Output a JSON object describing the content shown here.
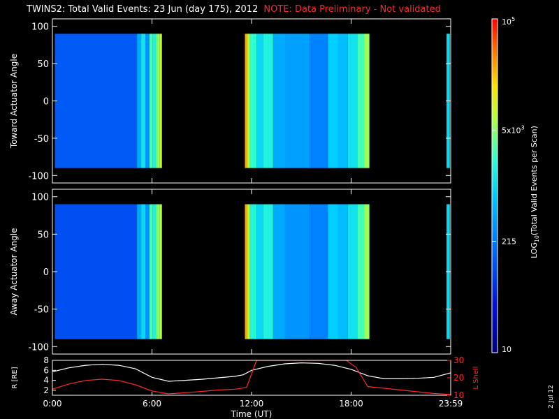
{
  "header": {
    "title": "TWINS2: Total Valid Events: 23 Jun (day 175), 2012",
    "note": "NOTE: Data Preliminary - Not validated"
  },
  "date_stamp": "2 Jul 12",
  "colors": {
    "background": "#000000",
    "axis": "#ffffff",
    "note": "#ff2a2a",
    "lshell": "#ff2a2a",
    "radius": "#ffffff"
  },
  "colorbar": {
    "label": "LOG10(Total Valid Events per Scan)",
    "scale": "log",
    "ticks": [
      "10",
      "215",
      "5x10^3",
      "10^5"
    ]
  },
  "x_axis": {
    "label": "Time (UT)",
    "ticks": [
      "0:00",
      "6:00",
      "12:00",
      "18:00",
      "23:59"
    ],
    "range_hours": [
      0,
      24
    ]
  },
  "chart_data": [
    {
      "type": "heatmap",
      "ylabel": "Toward Actuator Angle",
      "ylim": [
        -110,
        110
      ],
      "yticks": [
        100,
        50,
        0,
        -50,
        -100
      ],
      "angle_range": [
        -90,
        90
      ],
      "data_segments_hours": [
        [
          0.15,
          6.6
        ],
        [
          11.6,
          19.1
        ],
        [
          23.75,
          23.95
        ]
      ],
      "columns": [
        {
          "t0": 0.15,
          "t1": 5.1,
          "level": 0.28
        },
        {
          "t0": 5.1,
          "t1": 5.35,
          "level": 0.42
        },
        {
          "t0": 5.35,
          "t1": 5.6,
          "level": 0.52
        },
        {
          "t0": 5.6,
          "t1": 5.85,
          "level": 0.38
        },
        {
          "t0": 5.85,
          "t1": 6.05,
          "level": 0.6
        },
        {
          "t0": 6.05,
          "t1": 6.25,
          "level": 0.55
        },
        {
          "t0": 6.25,
          "t1": 6.45,
          "level": 0.66
        },
        {
          "t0": 6.45,
          "t1": 6.6,
          "level": 0.72
        },
        {
          "t0": 11.6,
          "t1": 11.75,
          "level": 0.85
        },
        {
          "t0": 11.75,
          "t1": 11.9,
          "level": 0.72
        },
        {
          "t0": 11.9,
          "t1": 12.3,
          "level": 0.58
        },
        {
          "t0": 12.3,
          "t1": 12.7,
          "level": 0.5
        },
        {
          "t0": 12.7,
          "t1": 13.3,
          "level": 0.55
        },
        {
          "t0": 13.3,
          "t1": 14.0,
          "level": 0.42
        },
        {
          "t0": 14.0,
          "t1": 15.5,
          "level": 0.4
        },
        {
          "t0": 15.5,
          "t1": 16.6,
          "level": 0.35
        },
        {
          "t0": 16.6,
          "t1": 17.2,
          "level": 0.48
        },
        {
          "t0": 17.2,
          "t1": 17.8,
          "level": 0.45
        },
        {
          "t0": 17.8,
          "t1": 18.4,
          "level": 0.52
        },
        {
          "t0": 18.4,
          "t1": 18.8,
          "level": 0.6
        },
        {
          "t0": 18.8,
          "t1": 19.1,
          "level": 0.68
        },
        {
          "t0": 23.75,
          "t1": 23.95,
          "level": 0.5
        }
      ]
    },
    {
      "type": "heatmap",
      "ylabel": "Away Actuator Angle",
      "ylim": [
        -110,
        110
      ],
      "yticks": [
        100,
        50,
        0,
        -50,
        -100
      ],
      "angle_range": [
        -90,
        90
      ],
      "data_segments_hours": [
        [
          0.15,
          6.6
        ],
        [
          11.6,
          19.1
        ],
        [
          23.75,
          23.95
        ]
      ],
      "columns": [
        {
          "t0": 0.15,
          "t1": 5.1,
          "level": 0.26
        },
        {
          "t0": 5.1,
          "t1": 5.35,
          "level": 0.42
        },
        {
          "t0": 5.35,
          "t1": 5.6,
          "level": 0.5
        },
        {
          "t0": 5.6,
          "t1": 5.85,
          "level": 0.38
        },
        {
          "t0": 5.85,
          "t1": 6.05,
          "level": 0.6
        },
        {
          "t0": 6.05,
          "t1": 6.25,
          "level": 0.55
        },
        {
          "t0": 6.25,
          "t1": 6.45,
          "level": 0.66
        },
        {
          "t0": 6.45,
          "t1": 6.6,
          "level": 0.7
        },
        {
          "t0": 11.6,
          "t1": 11.75,
          "level": 0.85
        },
        {
          "t0": 11.75,
          "t1": 11.9,
          "level": 0.72
        },
        {
          "t0": 11.9,
          "t1": 12.3,
          "level": 0.56
        },
        {
          "t0": 12.3,
          "t1": 12.7,
          "level": 0.5
        },
        {
          "t0": 12.7,
          "t1": 13.3,
          "level": 0.55
        },
        {
          "t0": 13.3,
          "t1": 14.0,
          "level": 0.42
        },
        {
          "t0": 14.0,
          "t1": 15.5,
          "level": 0.38
        },
        {
          "t0": 15.5,
          "t1": 16.6,
          "level": 0.35
        },
        {
          "t0": 16.6,
          "t1": 17.2,
          "level": 0.48
        },
        {
          "t0": 17.2,
          "t1": 17.8,
          "level": 0.45
        },
        {
          "t0": 17.8,
          "t1": 18.4,
          "level": 0.52
        },
        {
          "t0": 18.4,
          "t1": 18.8,
          "level": 0.6
        },
        {
          "t0": 18.8,
          "t1": 19.1,
          "level": 0.68
        },
        {
          "t0": 23.75,
          "t1": 23.95,
          "level": 0.5
        }
      ]
    },
    {
      "type": "line",
      "ylabel_left": "R [RE]",
      "ylabel_right": "L Shell",
      "ylim_left": [
        1,
        8
      ],
      "yticks_left": [
        8,
        6,
        4,
        2
      ],
      "ylim_right": [
        10,
        30
      ],
      "yticks_right": [
        30,
        20,
        10
      ],
      "series": [
        {
          "name": "R [RE]",
          "x": [
            0,
            1,
            2,
            3,
            4,
            5,
            6,
            7,
            8,
            9,
            10,
            11,
            11.5,
            12,
            13,
            14,
            15,
            16,
            17,
            18,
            19,
            20,
            21,
            22,
            23,
            23.99
          ],
          "y": [
            5.7,
            6.5,
            7.0,
            7.2,
            7.0,
            6.3,
            4.6,
            3.8,
            4.0,
            4.2,
            4.5,
            4.8,
            5.1,
            6.0,
            6.8,
            7.3,
            7.5,
            7.4,
            7.0,
            6.2,
            4.9,
            4.3,
            4.3,
            4.4,
            4.6,
            5.5
          ]
        },
        {
          "name": "L Shell",
          "x": [
            0,
            1,
            2,
            3,
            4,
            5,
            6,
            7,
            8,
            9,
            10,
            11,
            11.7,
            12.3,
            17.7,
            18.3,
            19,
            20,
            21,
            22,
            23,
            23.99
          ],
          "y": [
            13.5,
            16.5,
            18.5,
            19.2,
            18.5,
            16.0,
            12.5,
            10.8,
            11.5,
            12.2,
            13.0,
            13.5,
            14.5,
            30.0,
            30.0,
            26.0,
            15.0,
            14.0,
            13.0,
            12.0,
            11.0,
            10.5
          ]
        }
      ]
    }
  ]
}
